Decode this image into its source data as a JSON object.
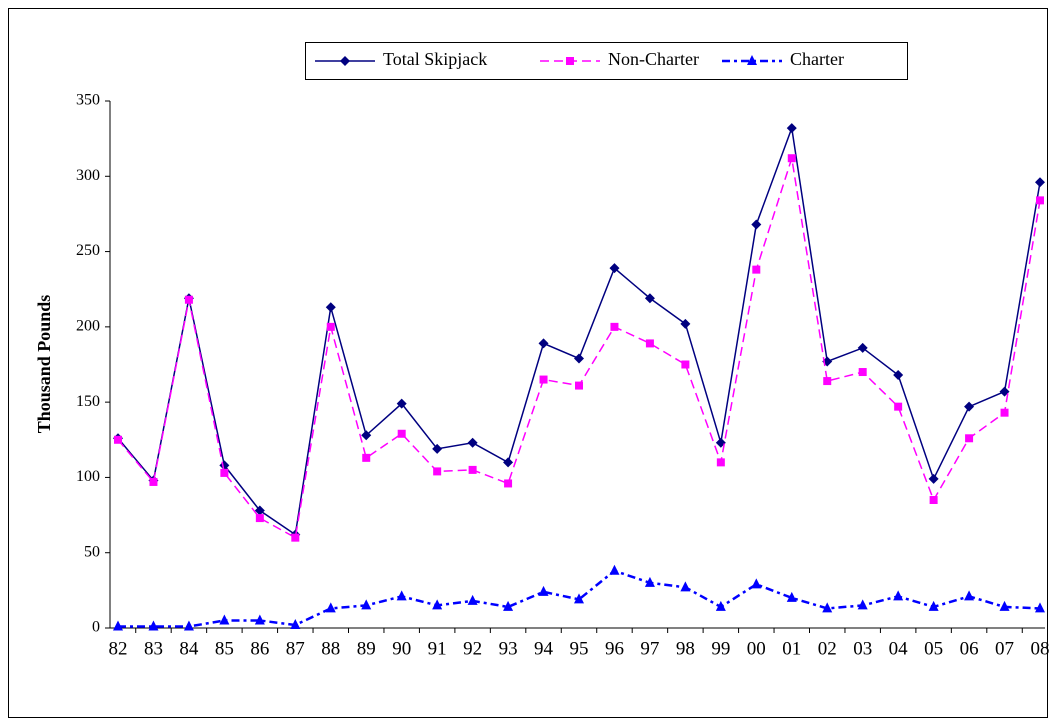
{
  "chart_data": {
    "type": "line",
    "y_label": "Thousand Pounds",
    "categories": [
      "82",
      "83",
      "84",
      "85",
      "86",
      "87",
      "88",
      "89",
      "90",
      "91",
      "92",
      "93",
      "94",
      "95",
      "96",
      "97",
      "98",
      "99",
      "00",
      "01",
      "02",
      "03",
      "04",
      "05",
      "06",
      "07",
      "08"
    ],
    "series": [
      {
        "name": "Total Skipjack",
        "color": "#000080",
        "marker": "diamond",
        "dash": "solid",
        "values": [
          126,
          98,
          219,
          108,
          78,
          62,
          213,
          128,
          149,
          119,
          123,
          110,
          189,
          179,
          239,
          219,
          202,
          123,
          268,
          332,
          177,
          186,
          168,
          99,
          147,
          157,
          296
        ]
      },
      {
        "name": "Non-Charter",
        "color": "#ff00ff",
        "marker": "square",
        "dash": "dashed",
        "values": [
          125,
          97,
          218,
          103,
          73,
          60,
          200,
          113,
          129,
          104,
          105,
          96,
          165,
          161,
          200,
          189,
          175,
          110,
          238,
          312,
          164,
          170,
          147,
          85,
          126,
          143,
          284
        ]
      },
      {
        "name": "Charter",
        "color": "#0000ff",
        "marker": "triangle",
        "dash": "dashdot",
        "values": [
          1,
          1,
          1,
          5,
          5,
          2,
          13,
          15,
          21,
          15,
          18,
          14,
          24,
          19,
          38,
          30,
          27,
          14,
          29,
          20,
          13,
          15,
          21,
          14,
          21,
          14,
          13
        ]
      }
    ],
    "ylim": [
      0,
      350
    ],
    "yticks": [
      0,
      50,
      100,
      150,
      200,
      250,
      300,
      350
    ],
    "legend": "top",
    "grid": false
  }
}
